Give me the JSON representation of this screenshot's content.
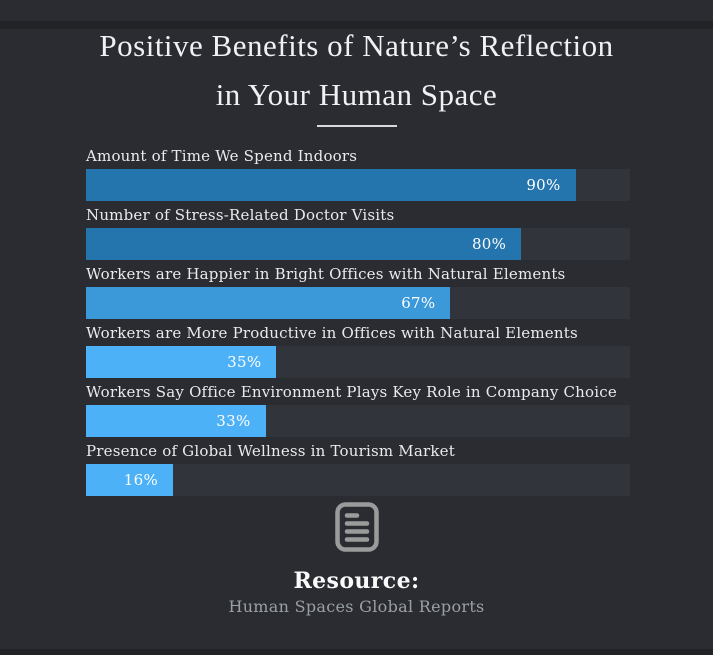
{
  "page": {
    "background_color": "#2a2c32",
    "edge_strip_color": "#222327"
  },
  "title": {
    "line1": "Positive Benefits of Nature’s Reflection",
    "line2": "in Your Human Space"
  },
  "chart_data": {
    "type": "bar",
    "orientation": "horizontal",
    "title": "Positive Benefits of Nature’s Reflection in Your Human Space",
    "categories": [
      "Amount of Time We Spend Indoors",
      "Number of Stress-Related Doctor Visits",
      "Workers are Happier in Bright Offices with Natural Elements",
      "Workers are More Productive in Offices with Natural Elements",
      "Workers Say Office Environment Plays Key Role in Company Choice",
      "Presence of Global Wellness in Tourism Market"
    ],
    "values": [
      90,
      80,
      67,
      35,
      33,
      16
    ],
    "value_labels": [
      "90%",
      "80%",
      "67%",
      "35%",
      "33%",
      "16%"
    ],
    "bar_colors": [
      "#2474ad",
      "#2474ad",
      "#3b99d9",
      "#4db1f7",
      "#4db1f7",
      "#4db1f7"
    ],
    "track_color": "#31343b",
    "xlim": [
      0,
      100
    ],
    "grid": false,
    "legend": false,
    "value_label_position": "inside-end"
  },
  "footer": {
    "icon": "document-lines-icon",
    "icon_color": "#9b9b9b",
    "resource_label": "Resource:",
    "source": "Human Spaces Global Reports"
  }
}
